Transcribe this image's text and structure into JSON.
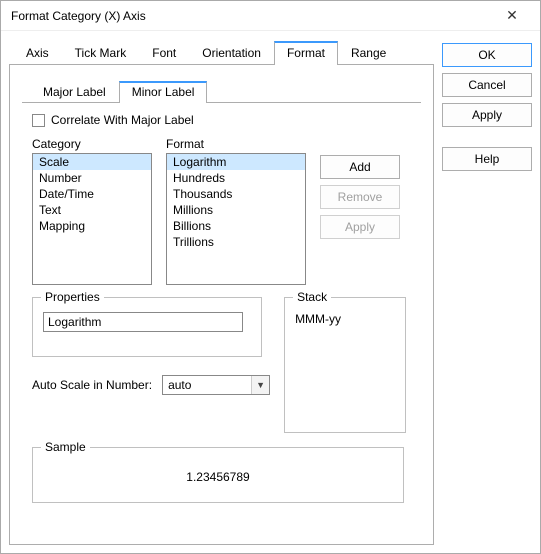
{
  "window": {
    "title": "Format Category (X) Axis"
  },
  "outer_tabs": {
    "items": [
      "Axis",
      "Tick Mark",
      "Font",
      "Orientation",
      "Format",
      "Range"
    ],
    "active_index": 4
  },
  "inner_tabs": {
    "items": [
      "Major Label",
      "Minor Label"
    ],
    "active_index": 1
  },
  "correlate": {
    "label": "Correlate With Major Label",
    "checked": false
  },
  "category": {
    "label": "Category",
    "items": [
      "Scale",
      "Number",
      "Date/Time",
      "Text",
      "Mapping"
    ],
    "selected_index": 0
  },
  "format_list": {
    "label": "Format",
    "items": [
      "Logarithm",
      "Hundreds",
      "Thousands",
      "Millions",
      "Billions",
      "Trillions"
    ],
    "selected_index": 0
  },
  "list_buttons": {
    "add": "Add",
    "remove": "Remove",
    "apply": "Apply"
  },
  "properties": {
    "label": "Properties",
    "value": "Logarithm"
  },
  "stack": {
    "label": "Stack",
    "value": "MMM-yy"
  },
  "autoscale": {
    "label": "Auto Scale in Number:",
    "value": "auto"
  },
  "sample": {
    "label": "Sample",
    "value": "1.23456789"
  },
  "side_buttons": {
    "ok": "OK",
    "cancel": "Cancel",
    "apply": "Apply",
    "help": "Help"
  },
  "colors": {
    "accent": "#3b99fc",
    "selection": "#cde8ff",
    "border": "#adadad"
  }
}
